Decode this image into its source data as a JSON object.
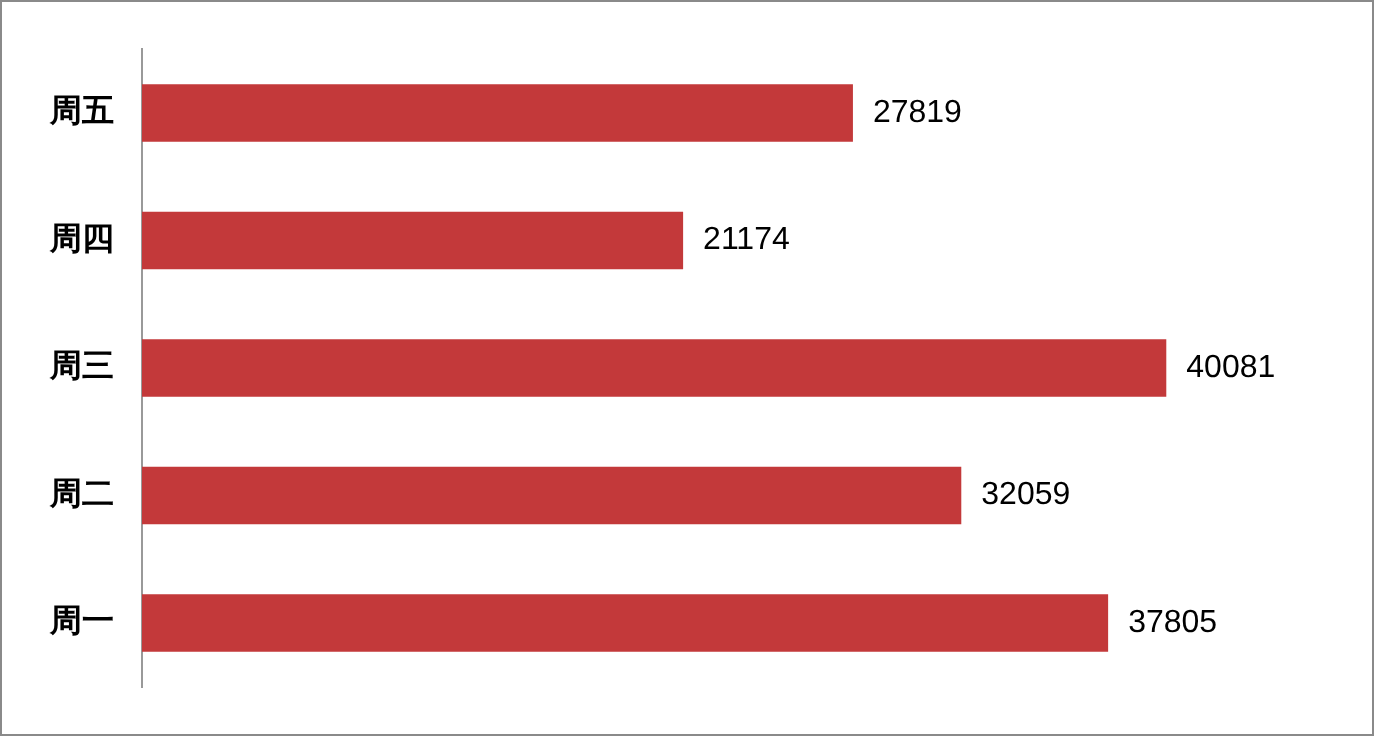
{
  "chart_data": {
    "type": "bar",
    "orientation": "horizontal",
    "categories": [
      "周五",
      "周四",
      "周三",
      "周二",
      "周一"
    ],
    "values": [
      27819,
      21174,
      40081,
      32059,
      37805
    ],
    "color": "#c3393a",
    "data_labels": true,
    "legend": false
  }
}
